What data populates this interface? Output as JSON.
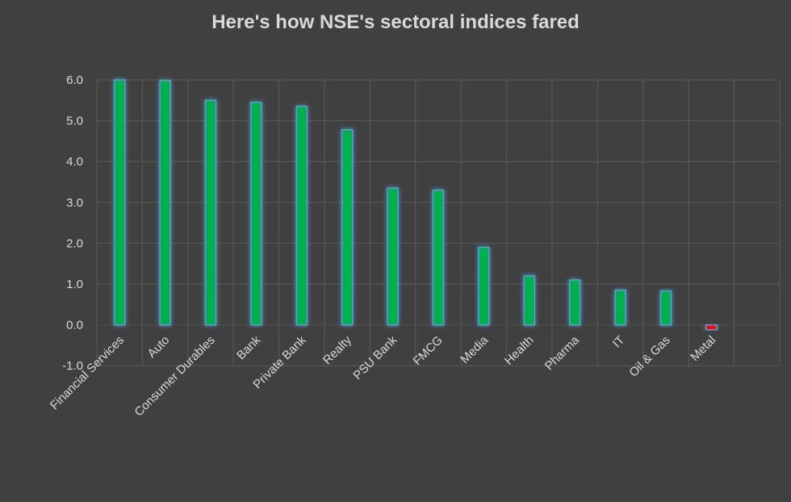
{
  "chart_data": {
    "type": "bar",
    "title": "Here's how NSE's sectoral indices fared",
    "xlabel": "",
    "ylabel": "",
    "ylim": [
      -1.0,
      6.0
    ],
    "yticks": [
      "6.0",
      "5.0",
      "4.0",
      "3.0",
      "2.0",
      "1.0",
      "0.0",
      "-1.0"
    ],
    "grid": true,
    "legend": "none",
    "categories": [
      "Financial Services",
      "Auto",
      "Consumer Durables",
      "Bank",
      "Private Bank",
      "Realty",
      "PSU Bank",
      "FMCG",
      "Media",
      "Health",
      "Pharma",
      "IT",
      "Oil & Gas",
      "Metal"
    ],
    "values": [
      6.0,
      5.98,
      5.5,
      5.45,
      5.35,
      4.78,
      3.35,
      3.3,
      1.9,
      1.2,
      1.1,
      0.85,
      0.83,
      -0.12
    ],
    "colors": {
      "positive": "#00b050",
      "negative": "#ff0000",
      "glow": "#5b9bd5"
    }
  }
}
